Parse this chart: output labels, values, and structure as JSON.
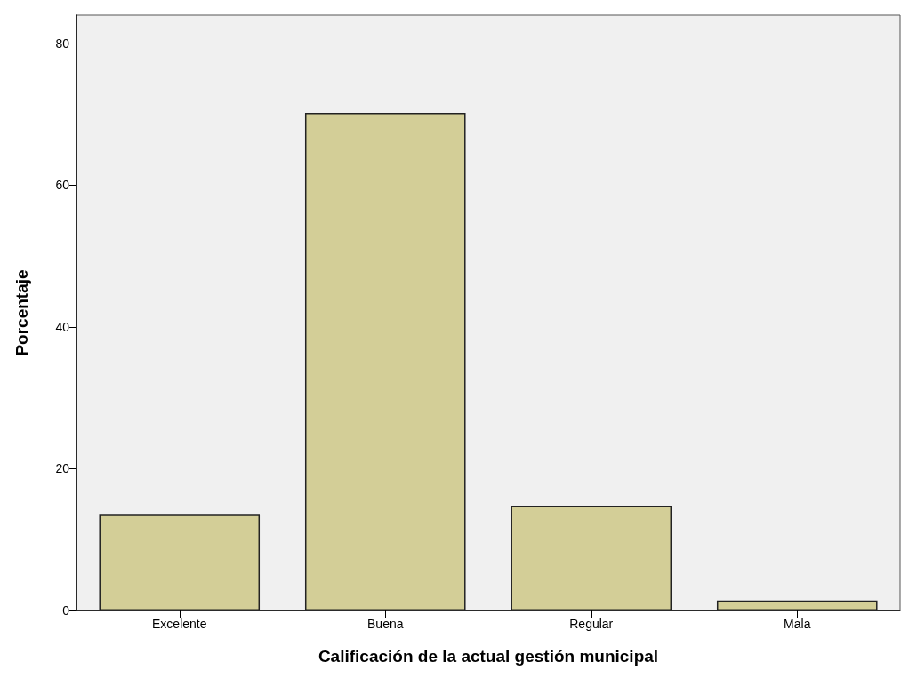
{
  "chart_data": {
    "type": "bar",
    "xlabel": "Calificación de la actual gestión municipal",
    "ylabel": "Porcentaje",
    "categories": [
      "Excelente",
      "Buena",
      "Regular",
      "Mala"
    ],
    "values": [
      13.5,
      70.2,
      14.8,
      1.4
    ],
    "color": "#d3ce97",
    "ylim": [
      0,
      84
    ],
    "yticks": [
      0,
      20,
      40,
      60,
      80
    ],
    "grid": false
  }
}
